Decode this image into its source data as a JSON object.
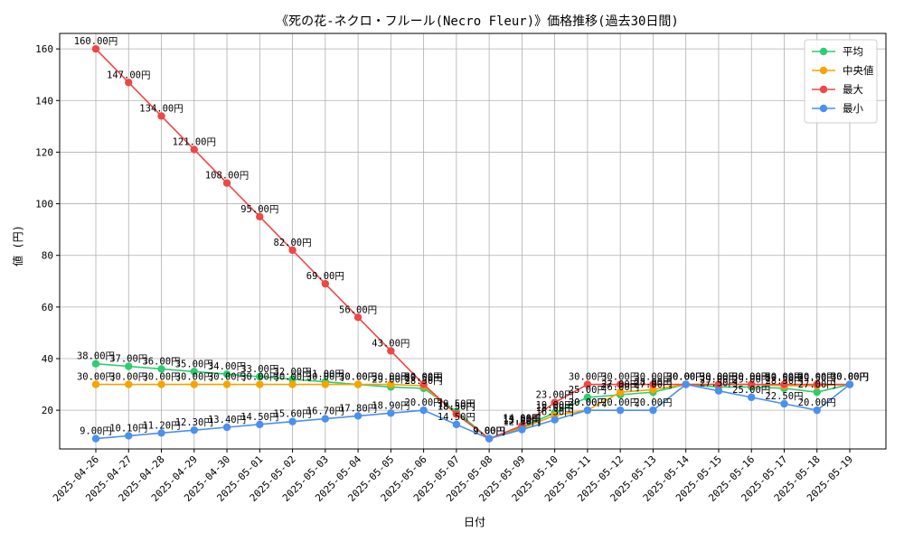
{
  "chart_data": {
    "type": "line",
    "title": "《死の花-ネクロ・フルール(Necro Fleur)》価格推移(過去30日間)",
    "xlabel": "日付",
    "ylabel": "値 (円)",
    "x": [
      "2025-04-26",
      "2025-04-27",
      "2025-04-28",
      "2025-04-29",
      "2025-04-30",
      "2025-05-01",
      "2025-05-02",
      "2025-05-03",
      "2025-05-04",
      "2025-05-05",
      "2025-05-06",
      "2025-05-07",
      "2025-05-08",
      "2025-05-09",
      "2025-05-10",
      "2025-05-11",
      "2025-05-12",
      "2025-05-13",
      "2025-05-14",
      "2025-05-15",
      "2025-05-16",
      "2025-05-17",
      "2025-05-18",
      "2025-05-19"
    ],
    "ylim": [
      5,
      166
    ],
    "yticks": [
      20,
      40,
      60,
      80,
      100,
      120,
      140,
      160
    ],
    "grid": true,
    "legend_position": "top-right",
    "label_suffix": "円",
    "series": [
      {
        "name": "平均",
        "color": "#2ecc71",
        "values": [
          38,
          37,
          36,
          35,
          34,
          33,
          32,
          31,
          30,
          29,
          28.5,
          19.5,
          9,
          13.5,
          19,
          25,
          26,
          27,
          30,
          29,
          29,
          28.5,
          27,
          30
        ]
      },
      {
        "name": "中央値",
        "color": "#f5a400",
        "values": [
          30,
          30,
          30,
          30,
          30,
          30,
          30,
          30,
          30,
          30,
          29.5,
          18.5,
          9,
          13,
          18,
          20,
          27,
          28,
          30,
          30,
          30,
          29.5,
          29.5,
          30
        ]
      },
      {
        "name": "最大",
        "color": "#f04646",
        "values": [
          160,
          147,
          134,
          121,
          108,
          95,
          82,
          69,
          56,
          43,
          30,
          18.5,
          9,
          14,
          23,
          30,
          30,
          30,
          30,
          30,
          30,
          30,
          30,
          30
        ]
      },
      {
        "name": "最小",
        "color": "#4a90f0",
        "values": [
          9,
          10.1,
          11.2,
          12.3,
          13.4,
          14.5,
          15.6,
          16.7,
          17.8,
          18.9,
          20,
          14.5,
          9,
          12.5,
          16.3,
          20,
          20,
          20,
          30,
          27.5,
          25,
          22.5,
          20,
          30
        ]
      }
    ]
  }
}
